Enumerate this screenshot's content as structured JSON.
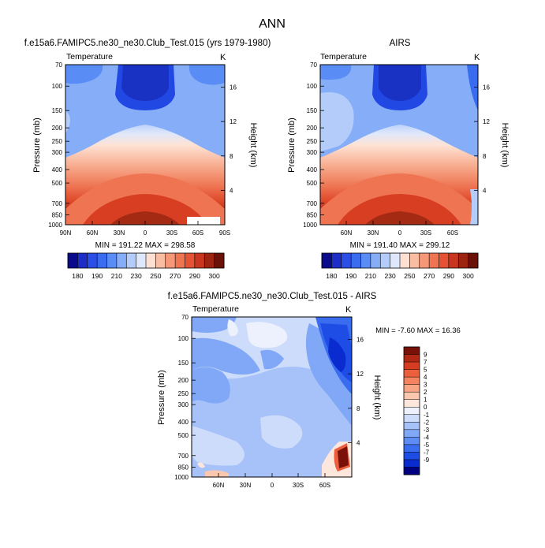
{
  "page": {
    "title": "ANN"
  },
  "scales": {
    "absolute_colors": [
      "#0a0a8c",
      "#1c2dc8",
      "#2a4ee6",
      "#3a6cf0",
      "#5a8cf6",
      "#86adf8",
      "#b3ccfa",
      "#dfe8fb",
      "#fde0d2",
      "#f9bda3",
      "#f59877",
      "#ef7452",
      "#e65236",
      "#c9361f",
      "#9e2412",
      "#6b1208"
    ],
    "absolute_labels": [
      "180",
      "190",
      "210",
      "230",
      "250",
      "270",
      "290",
      "300"
    ],
    "diff_colors": [
      "#000080",
      "#0a2bcf",
      "#1e4de6",
      "#3a6cf0",
      "#5c8cf4",
      "#80a8f7",
      "#a6c2f9",
      "#cddcfb",
      "#ecf1fd",
      "#fde7dc",
      "#fbc7af",
      "#f8a585",
      "#f4835f",
      "#ec5f3c",
      "#d63c22",
      "#b02813",
      "#7a1108"
    ],
    "diff_labels": [
      "9",
      "7",
      "5",
      "4",
      "3",
      "2",
      "1",
      "0",
      "-1",
      "-2",
      "-3",
      "-4",
      "-5",
      "-7",
      "-9"
    ]
  },
  "chart_data": [
    {
      "id": "model",
      "type": "heatmap",
      "title": "f.e15a6.FAMIPC5.ne30_ne30.Club_Test.015 (yrs 1979-1980)",
      "left_label": "Temperature",
      "right_label": "K",
      "ylabel": "Pressure (mb)",
      "y2label": "Height (km)",
      "x_ticks": [
        "90N",
        "60N",
        "30N",
        "0",
        "30S",
        "60S",
        "90S"
      ],
      "y_ticks": [
        "70",
        "100",
        "150",
        "200",
        "250",
        "300",
        "400",
        "500",
        "700",
        "850",
        "1000"
      ],
      "y2_ticks": [
        "16",
        "12",
        "8",
        "4"
      ],
      "stats": "MIN = 191.22   MAX = 298.58",
      "min": 191.22,
      "max": 298.58
    },
    {
      "id": "obs",
      "type": "heatmap",
      "title": "AIRS",
      "left_label": "Temperature",
      "right_label": "K",
      "ylabel": "Pressure (mb)",
      "y2label": "Height (km)",
      "x_ticks": [
        "60N",
        "30N",
        "0",
        "30S",
        "60S"
      ],
      "y_ticks": [
        "70",
        "100",
        "150",
        "200",
        "250",
        "300",
        "400",
        "500",
        "700",
        "850",
        "1000"
      ],
      "y2_ticks": [
        "16",
        "12",
        "8",
        "4"
      ],
      "stats": "MIN = 191.40   MAX = 299.12",
      "min": 191.4,
      "max": 299.12
    },
    {
      "id": "diff",
      "type": "heatmap",
      "title": "f.e15a6.FAMIPC5.ne30_ne30.Club_Test.015 - AIRS",
      "left_label": "Temperature",
      "right_label": "K",
      "ylabel": "Pressure (mb)",
      "y2label": "Height (km)",
      "x_ticks": [
        "60N",
        "30N",
        "0",
        "30S",
        "60S"
      ],
      "y_ticks": [
        "70",
        "100",
        "150",
        "200",
        "250",
        "300",
        "400",
        "500",
        "700",
        "850",
        "1000"
      ],
      "y2_ticks": [
        "16",
        "12",
        "8",
        "4"
      ],
      "stats": "MIN =  -7.60   MAX =  16.36",
      "min": -7.6,
      "max": 16.36
    }
  ]
}
